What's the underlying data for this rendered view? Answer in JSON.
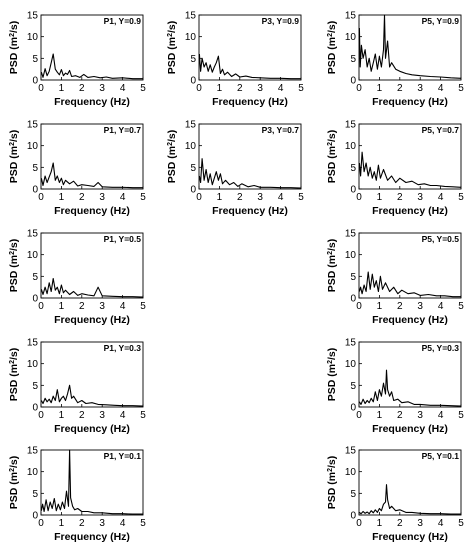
{
  "chart_data": {
    "type": "line",
    "xlabel": "Frequency (Hz)",
    "ylabel": "PSD (m²/s)",
    "ylabel_parts": {
      "pre": "PSD (m",
      "sup": "2",
      "post": "/s)"
    },
    "xlim": [
      0,
      5
    ],
    "ylim": [
      0,
      15
    ],
    "xticks": [
      0,
      1,
      2,
      3,
      4,
      5
    ],
    "yticks": [
      0,
      5,
      10,
      15
    ],
    "grid": false,
    "panels": [
      {
        "id": "p1-09",
        "col": 0,
        "row": 0,
        "title": "P1, Y=0.9",
        "x": [
          0.02,
          0.1,
          0.2,
          0.3,
          0.4,
          0.5,
          0.6,
          0.7,
          0.8,
          0.9,
          1.0,
          1.1,
          1.2,
          1.3,
          1.4,
          1.5,
          1.7,
          1.9,
          2.1,
          2.3,
          2.6,
          2.9,
          3.2,
          3.5,
          4.0,
          4.5,
          5.0
        ],
        "y": [
          1.8,
          0.6,
          2.6,
          1.0,
          2.0,
          4.0,
          6.0,
          2.5,
          1.8,
          1.2,
          2.4,
          1.0,
          1.6,
          1.3,
          2.2,
          0.8,
          1.0,
          0.6,
          1.3,
          0.6,
          0.8,
          0.5,
          0.7,
          0.4,
          0.5,
          0.3,
          0.3
        ]
      },
      {
        "id": "p3-09",
        "col": 1,
        "row": 0,
        "title": "P3, Y=0.9",
        "x": [
          0.02,
          0.08,
          0.15,
          0.25,
          0.35,
          0.45,
          0.55,
          0.65,
          0.75,
          0.85,
          0.95,
          1.05,
          1.15,
          1.25,
          1.4,
          1.6,
          1.8,
          2.0,
          2.3,
          2.6,
          3.0,
          3.5,
          4.0,
          4.5,
          5.0
        ],
        "y": [
          6.0,
          2.0,
          5.0,
          3.0,
          4.0,
          2.0,
          3.5,
          1.8,
          3.0,
          4.0,
          5.5,
          1.5,
          2.5,
          1.2,
          1.8,
          0.8,
          1.4,
          0.7,
          0.9,
          0.6,
          0.5,
          0.4,
          0.4,
          0.3,
          0.3
        ]
      },
      {
        "id": "p5-09",
        "col": 2,
        "row": 0,
        "title": "P5, Y=0.9",
        "x": [
          0.02,
          0.06,
          0.12,
          0.2,
          0.3,
          0.4,
          0.5,
          0.6,
          0.7,
          0.8,
          0.9,
          1.0,
          1.1,
          1.2,
          1.25,
          1.3,
          1.4,
          1.5,
          1.6,
          1.8,
          2.0,
          2.3,
          2.6,
          3.0,
          3.5,
          4.0,
          4.5,
          5.0
        ],
        "y": [
          12.0,
          3.0,
          8.0,
          5.0,
          7.0,
          3.0,
          5.0,
          2.0,
          4.0,
          6.0,
          2.5,
          5.5,
          3.0,
          7.0,
          15.0,
          5.0,
          9.0,
          3.0,
          4.0,
          2.5,
          2.0,
          1.5,
          1.2,
          1.0,
          0.8,
          0.7,
          0.5,
          0.4
        ]
      },
      {
        "id": "p1-07",
        "col": 0,
        "row": 1,
        "title": "P1, Y=0.7",
        "x": [
          0.02,
          0.1,
          0.2,
          0.3,
          0.4,
          0.5,
          0.6,
          0.7,
          0.8,
          0.9,
          1.0,
          1.1,
          1.2,
          1.4,
          1.6,
          1.8,
          2.0,
          2.3,
          2.6,
          2.8,
          3.0,
          3.5,
          4.0,
          4.5,
          5.0
        ],
        "y": [
          2.5,
          0.8,
          3.0,
          1.5,
          2.8,
          4.0,
          6.0,
          2.0,
          3.0,
          1.5,
          2.5,
          1.0,
          2.0,
          1.2,
          1.8,
          0.7,
          1.0,
          0.8,
          0.6,
          1.5,
          0.5,
          0.4,
          0.4,
          0.3,
          0.3
        ]
      },
      {
        "id": "p3-07",
        "col": 1,
        "row": 1,
        "title": "P3, Y=0.7",
        "x": [
          0.02,
          0.08,
          0.15,
          0.25,
          0.35,
          0.45,
          0.55,
          0.65,
          0.75,
          0.85,
          0.95,
          1.05,
          1.15,
          1.3,
          1.5,
          1.7,
          1.9,
          2.1,
          2.4,
          2.7,
          3.0,
          3.5,
          4.0,
          4.5,
          5.0
        ],
        "y": [
          3.0,
          1.5,
          7.0,
          2.0,
          4.5,
          1.5,
          3.5,
          1.0,
          2.5,
          4.0,
          2.0,
          3.5,
          1.2,
          2.0,
          1.0,
          1.5,
          0.6,
          1.2,
          0.5,
          0.8,
          0.4,
          0.4,
          0.3,
          0.3,
          0.2
        ]
      },
      {
        "id": "p5-07",
        "col": 2,
        "row": 1,
        "title": "P5, Y=0.7",
        "x": [
          0.02,
          0.08,
          0.15,
          0.25,
          0.35,
          0.45,
          0.55,
          0.65,
          0.75,
          0.85,
          0.95,
          1.05,
          1.2,
          1.4,
          1.6,
          1.8,
          2.0,
          2.3,
          2.6,
          2.9,
          3.2,
          3.5,
          3.8,
          4.2,
          4.6,
          5.0
        ],
        "y": [
          6.0,
          3.0,
          8.5,
          4.0,
          6.0,
          3.0,
          5.0,
          2.5,
          4.0,
          2.0,
          5.5,
          2.5,
          4.5,
          2.0,
          3.0,
          1.5,
          2.5,
          1.5,
          1.8,
          1.0,
          1.2,
          0.8,
          0.8,
          0.6,
          0.5,
          0.4
        ]
      },
      {
        "id": "p1-05",
        "col": 0,
        "row": 2,
        "title": "P1, Y=0.5",
        "x": [
          0.02,
          0.1,
          0.2,
          0.3,
          0.4,
          0.5,
          0.6,
          0.7,
          0.8,
          0.9,
          1.0,
          1.1,
          1.2,
          1.4,
          1.6,
          1.8,
          2.0,
          2.3,
          2.6,
          2.8,
          3.0,
          3.5,
          4.0,
          4.5,
          5.0
        ],
        "y": [
          2.0,
          0.8,
          2.5,
          1.0,
          3.5,
          1.5,
          4.5,
          1.8,
          2.5,
          1.0,
          3.0,
          1.2,
          1.8,
          0.8,
          1.5,
          0.6,
          1.0,
          0.7,
          0.5,
          2.5,
          0.5,
          0.4,
          0.3,
          0.3,
          0.2
        ]
      },
      {
        "id": "p5-05",
        "col": 2,
        "row": 2,
        "title": "P5, Y=0.5",
        "x": [
          0.02,
          0.08,
          0.15,
          0.25,
          0.35,
          0.45,
          0.55,
          0.65,
          0.75,
          0.85,
          0.95,
          1.05,
          1.15,
          1.3,
          1.5,
          1.7,
          1.9,
          2.1,
          2.4,
          2.7,
          3.0,
          3.4,
          3.8,
          4.2,
          4.6,
          5.0
        ],
        "y": [
          1.5,
          2.5,
          1.0,
          3.0,
          1.5,
          6.0,
          2.0,
          5.5,
          2.5,
          4.0,
          1.5,
          5.0,
          2.0,
          3.5,
          1.5,
          2.5,
          1.0,
          1.8,
          1.0,
          1.2,
          0.6,
          0.8,
          0.5,
          0.5,
          0.3,
          0.3
        ]
      },
      {
        "id": "p1-03",
        "col": 0,
        "row": 3,
        "title": "P1, Y=0.3",
        "x": [
          0.02,
          0.1,
          0.2,
          0.3,
          0.4,
          0.5,
          0.6,
          0.7,
          0.8,
          0.9,
          1.0,
          1.1,
          1.2,
          1.3,
          1.4,
          1.5,
          1.6,
          1.8,
          2.0,
          2.2,
          2.5,
          2.8,
          3.2,
          3.6,
          4.0,
          4.5,
          5.0
        ],
        "y": [
          1.5,
          0.8,
          2.0,
          1.2,
          1.8,
          1.0,
          2.5,
          1.5,
          4.0,
          1.2,
          2.0,
          2.5,
          1.5,
          3.0,
          5.0,
          2.0,
          2.5,
          1.0,
          1.5,
          0.8,
          1.0,
          0.6,
          0.5,
          0.4,
          0.3,
          0.3,
          0.2
        ]
      },
      {
        "id": "p5-03",
        "col": 2,
        "row": 3,
        "title": "P5, Y=0.3",
        "x": [
          0.02,
          0.1,
          0.2,
          0.3,
          0.4,
          0.5,
          0.6,
          0.7,
          0.8,
          0.9,
          1.0,
          1.1,
          1.2,
          1.3,
          1.35,
          1.4,
          1.5,
          1.6,
          1.7,
          1.9,
          2.1,
          2.4,
          2.7,
          3.0,
          3.5,
          4.0,
          4.5,
          5.0
        ],
        "y": [
          1.2,
          0.6,
          1.8,
          0.8,
          1.5,
          1.0,
          2.0,
          1.2,
          3.5,
          1.5,
          4.0,
          2.5,
          5.5,
          3.0,
          8.5,
          4.0,
          2.5,
          3.5,
          1.5,
          1.8,
          1.0,
          1.2,
          0.6,
          0.6,
          0.4,
          0.4,
          0.3,
          0.2
        ]
      },
      {
        "id": "p1-01",
        "col": 0,
        "row": 4,
        "title": "P1, Y=0.1",
        "x": [
          0.02,
          0.08,
          0.15,
          0.25,
          0.35,
          0.45,
          0.55,
          0.65,
          0.75,
          0.85,
          0.95,
          1.05,
          1.15,
          1.25,
          1.35,
          1.4,
          1.45,
          1.55,
          1.65,
          1.8,
          2.0,
          2.3,
          2.6,
          3.0,
          3.5,
          4.0,
          4.5,
          5.0
        ],
        "y": [
          1.0,
          2.5,
          0.8,
          3.5,
          1.0,
          3.0,
          1.5,
          3.8,
          1.0,
          2.5,
          1.2,
          3.0,
          1.5,
          5.5,
          2.0,
          15.0,
          4.0,
          2.0,
          1.2,
          1.5,
          0.8,
          0.8,
          0.5,
          0.5,
          0.3,
          0.3,
          0.2,
          0.2
        ]
      },
      {
        "id": "p5-01",
        "col": 2,
        "row": 4,
        "title": "P5, Y=0.1",
        "x": [
          0.02,
          0.1,
          0.2,
          0.3,
          0.4,
          0.5,
          0.6,
          0.7,
          0.8,
          0.9,
          1.0,
          1.1,
          1.2,
          1.3,
          1.35,
          1.4,
          1.5,
          1.6,
          1.8,
          2.0,
          2.3,
          2.6,
          3.0,
          3.5,
          4.0,
          4.5,
          5.0
        ],
        "y": [
          0.6,
          0.3,
          0.8,
          0.4,
          0.7,
          0.3,
          1.0,
          0.5,
          1.2,
          0.6,
          1.5,
          1.0,
          2.5,
          3.0,
          7.0,
          3.5,
          1.5,
          2.0,
          1.0,
          1.2,
          0.6,
          0.6,
          0.4,
          0.3,
          0.3,
          0.2,
          0.2
        ]
      }
    ]
  }
}
